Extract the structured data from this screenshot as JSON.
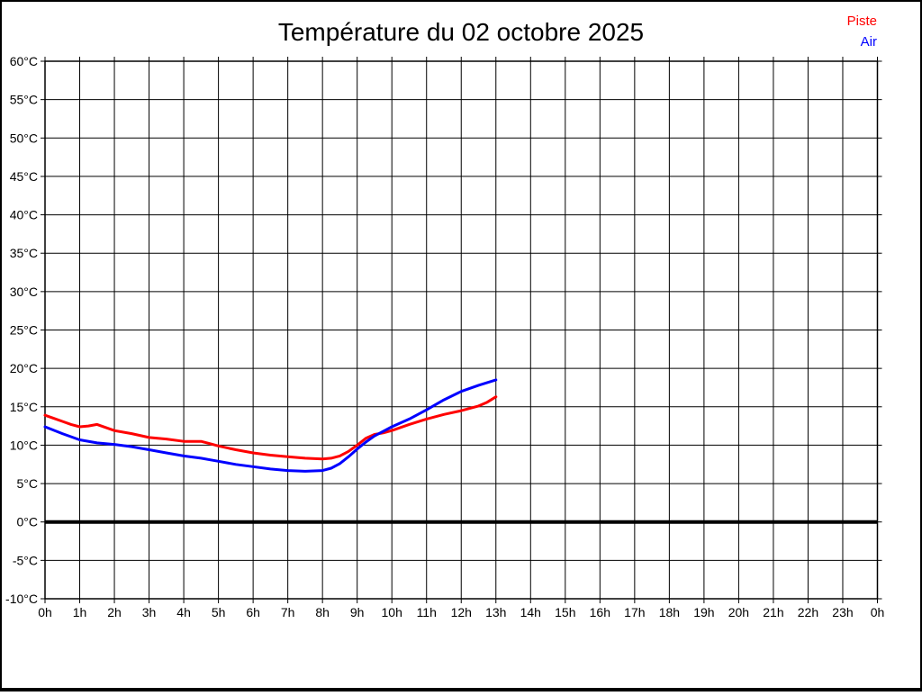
{
  "chart_data": {
    "type": "line",
    "title": "Température du 02 octobre 2025",
    "xlabel": "",
    "ylabel": "",
    "xlim": [
      0,
      24
    ],
    "ylim": [
      -10,
      60
    ],
    "x_unit": "hours",
    "y_unit": "°C",
    "grid": "on",
    "legend_position": "top-right",
    "zero_line": {
      "value": 0,
      "color": "#000000"
    },
    "xtick_labels": [
      "0h",
      "1h",
      "2h",
      "3h",
      "4h",
      "5h",
      "6h",
      "7h",
      "8h",
      "9h",
      "10h",
      "11h",
      "12h",
      "13h",
      "14h",
      "15h",
      "16h",
      "17h",
      "18h",
      "19h",
      "20h",
      "21h",
      "22h",
      "23h",
      "0h"
    ],
    "ytick_labels": [
      "60°C",
      "55°C",
      "50°C",
      "45°C",
      "40°C",
      "35°C",
      "30°C",
      "25°C",
      "20°C",
      "15°C",
      "10°C",
      "5°C",
      "0°C",
      "-5°C",
      "-10°C"
    ],
    "series": [
      {
        "name": "Piste",
        "color": "#ff0000",
        "points": [
          [
            0,
            13.9
          ],
          [
            0.25,
            13.5
          ],
          [
            0.5,
            13.1
          ],
          [
            0.75,
            12.7
          ],
          [
            1,
            12.4
          ],
          [
            1.25,
            12.5
          ],
          [
            1.5,
            12.7
          ],
          [
            1.75,
            12.3
          ],
          [
            2,
            11.9
          ],
          [
            2.5,
            11.5
          ],
          [
            3,
            11.0
          ],
          [
            3.5,
            10.8
          ],
          [
            4,
            10.5
          ],
          [
            4.5,
            10.5
          ],
          [
            4.75,
            10.2
          ],
          [
            5,
            9.9
          ],
          [
            5.5,
            9.4
          ],
          [
            6,
            9.0
          ],
          [
            6.5,
            8.7
          ],
          [
            7,
            8.5
          ],
          [
            7.5,
            8.3
          ],
          [
            8,
            8.2
          ],
          [
            8.25,
            8.3
          ],
          [
            8.5,
            8.6
          ],
          [
            8.75,
            9.2
          ],
          [
            9,
            10.0
          ],
          [
            9.25,
            10.9
          ],
          [
            9.5,
            11.4
          ],
          [
            9.75,
            11.6
          ],
          [
            10,
            11.9
          ],
          [
            10.5,
            12.7
          ],
          [
            11,
            13.4
          ],
          [
            11.5,
            14.0
          ],
          [
            12,
            14.5
          ],
          [
            12.5,
            15.1
          ],
          [
            12.75,
            15.6
          ],
          [
            13,
            16.3
          ]
        ]
      },
      {
        "name": "Air",
        "color": "#0000ff",
        "points": [
          [
            0,
            12.4
          ],
          [
            0.5,
            11.5
          ],
          [
            1,
            10.7
          ],
          [
            1.5,
            10.3
          ],
          [
            2,
            10.1
          ],
          [
            2.5,
            9.8
          ],
          [
            3,
            9.4
          ],
          [
            3.5,
            9.0
          ],
          [
            4,
            8.6
          ],
          [
            4.5,
            8.3
          ],
          [
            5,
            7.9
          ],
          [
            5.5,
            7.5
          ],
          [
            6,
            7.2
          ],
          [
            6.5,
            6.9
          ],
          [
            7,
            6.7
          ],
          [
            7.5,
            6.6
          ],
          [
            8,
            6.7
          ],
          [
            8.25,
            7.0
          ],
          [
            8.5,
            7.6
          ],
          [
            8.75,
            8.5
          ],
          [
            9,
            9.5
          ],
          [
            9.25,
            10.4
          ],
          [
            9.5,
            11.2
          ],
          [
            9.75,
            11.8
          ],
          [
            10,
            12.4
          ],
          [
            10.5,
            13.4
          ],
          [
            11,
            14.6
          ],
          [
            11.5,
            15.9
          ],
          [
            12,
            17.0
          ],
          [
            12.5,
            17.8
          ],
          [
            13,
            18.5
          ]
        ]
      }
    ]
  }
}
